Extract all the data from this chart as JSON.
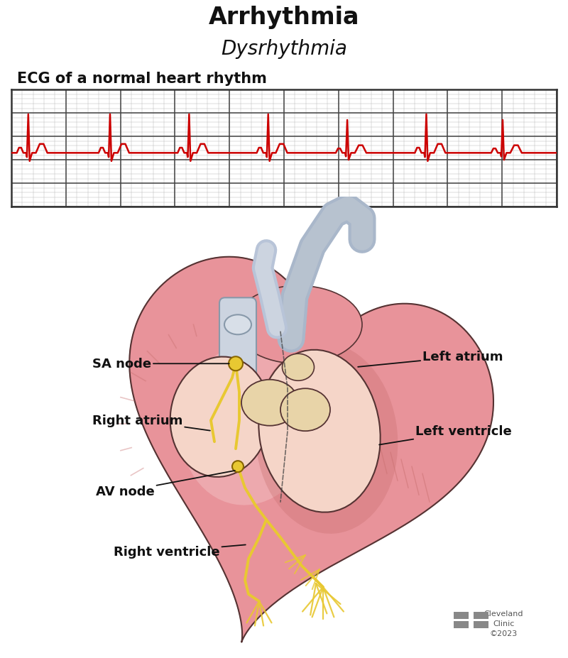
{
  "title": "Arrhythmia",
  "subtitle": "Dysrhythmia",
  "ecg_label": "ECG of a normal heart rhythm",
  "title_fontsize": 24,
  "subtitle_fontsize": 20,
  "ecg_label_fontsize": 15,
  "bg_color": "#ffffff",
  "ecg_color": "#cc0000",
  "ecg_grid_major_color": "#444444",
  "ecg_grid_minor_color": "#bbbbbb",
  "ecg_bg": "#ffffff",
  "label_fontsize": 13,
  "cleveland_clinic_text": "Cleveland\nClinic\n©2023",
  "heart_pink_main": "#e8939a",
  "heart_pink_light": "#f2b8bc",
  "heart_pink_dark": "#c97070",
  "heart_interior_light": "#f5d5c8",
  "heart_vessel_blue": "#b8c4d8",
  "heart_vessel_blue2": "#9baabf",
  "heart_conduction": "#e8c832",
  "heart_outline": "#553333",
  "heart_valve_cream": "#e8d4a8",
  "heart_dashed": "#444444",
  "annotation_color": "#111111",
  "cc_logo_color": "#888888"
}
